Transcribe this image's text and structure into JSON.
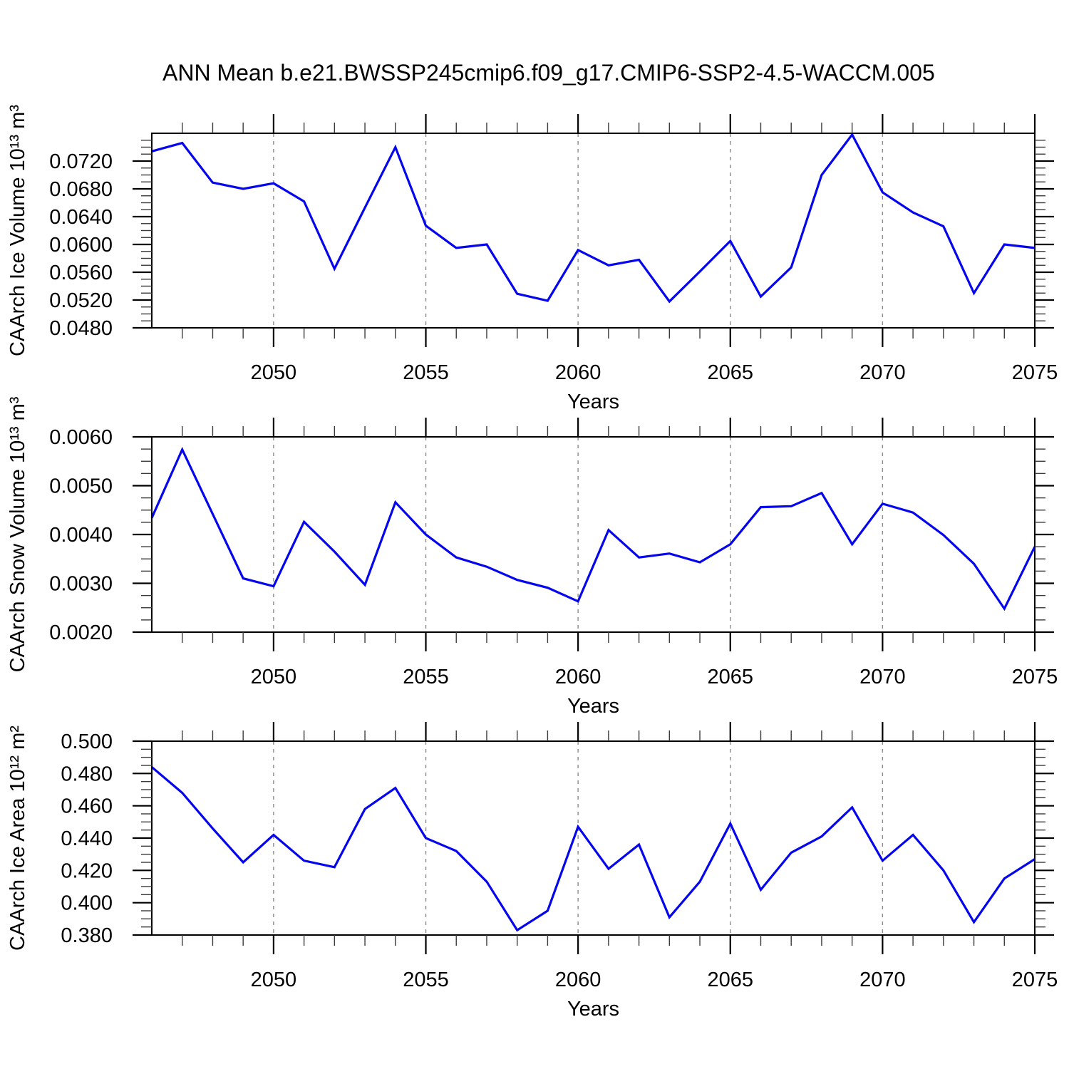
{
  "title": "ANN Mean b.e21.BWSSP245cmip6.f09_g17.CMIP6-SSP2-4.5-WACCM.005",
  "line_color": "#0505EE",
  "chart_data": [
    {
      "type": "line",
      "id": "caarch-ice-volume",
      "ylabel": "CAArch Ice Volume 10¹³ m³",
      "xlabel": "Years",
      "xlim": [
        2046,
        2075
      ],
      "ylim": [
        0.048,
        0.076
      ],
      "y_ticks": [
        0.048,
        0.052,
        0.056,
        0.06,
        0.064,
        0.068,
        0.072
      ],
      "y_minor_step": 0.001,
      "y_decimals": 4,
      "x_major_ticks": [
        2050,
        2055,
        2060,
        2065,
        2070,
        2075
      ],
      "x_gridlines": [
        2050,
        2055,
        2060,
        2065,
        2070
      ],
      "grid": "vertical-dashed",
      "legend": "none",
      "x": [
        2046,
        2047,
        2048,
        2049,
        2050,
        2051,
        2052,
        2053,
        2054,
        2055,
        2056,
        2057,
        2058,
        2059,
        2060,
        2061,
        2062,
        2063,
        2064,
        2065,
        2066,
        2067,
        2068,
        2069,
        2070,
        2071,
        2072,
        2073,
        2074,
        2075
      ],
      "values": [
        0.0734,
        0.0746,
        0.0689,
        0.068,
        0.0688,
        0.0662,
        0.0565,
        0.0653,
        0.074,
        0.0627,
        0.0595,
        0.06,
        0.0529,
        0.0519,
        0.0592,
        0.057,
        0.0578,
        0.0518,
        0.0561,
        0.0605,
        0.0525,
        0.0567,
        0.07,
        0.0758,
        0.0675,
        0.0646,
        0.0626,
        0.053,
        0.06,
        0.0595
      ]
    },
    {
      "type": "line",
      "id": "caarch-snow-volume",
      "ylabel": "CAArch Snow Volume 10¹³ m³",
      "xlabel": "Years",
      "xlim": [
        2046,
        2075
      ],
      "ylim": [
        0.002,
        0.006
      ],
      "y_ticks": [
        0.002,
        0.003,
        0.004,
        0.005,
        0.006
      ],
      "y_minor_step": 0.00025,
      "y_decimals": 4,
      "x_major_ticks": [
        2050,
        2055,
        2060,
        2065,
        2070,
        2075
      ],
      "x_gridlines": [
        2050,
        2055,
        2060,
        2065,
        2070
      ],
      "grid": "vertical-dashed",
      "legend": "none",
      "x": [
        2046,
        2047,
        2048,
        2049,
        2050,
        2051,
        2052,
        2053,
        2054,
        2055,
        2056,
        2057,
        2058,
        2059,
        2060,
        2061,
        2062,
        2063,
        2064,
        2065,
        2066,
        2067,
        2068,
        2069,
        2070,
        2071,
        2072,
        2073,
        2074,
        2075
      ],
      "values": [
        0.00434,
        0.00574,
        0.00442,
        0.0031,
        0.00294,
        0.00426,
        0.00365,
        0.00297,
        0.00466,
        0.004,
        0.00353,
        0.00334,
        0.00307,
        0.00291,
        0.00263,
        0.00409,
        0.00353,
        0.00361,
        0.00343,
        0.0038,
        0.00456,
        0.00458,
        0.00485,
        0.0038,
        0.00463,
        0.00445,
        0.00399,
        0.0034,
        0.00248,
        0.00375
      ]
    },
    {
      "type": "line",
      "id": "caarch-ice-area",
      "ylabel": "CAArch Ice Area 10¹² m²",
      "xlabel": "Years",
      "xlim": [
        2046,
        2075
      ],
      "ylim": [
        0.38,
        0.5
      ],
      "y_ticks": [
        0.38,
        0.4,
        0.42,
        0.44,
        0.46,
        0.48,
        0.5
      ],
      "y_minor_step": 0.005,
      "y_decimals": 3,
      "x_major_ticks": [
        2050,
        2055,
        2060,
        2065,
        2070,
        2075
      ],
      "x_gridlines": [
        2050,
        2055,
        2060,
        2065,
        2070
      ],
      "grid": "vertical-dashed",
      "legend": "none",
      "x": [
        2046,
        2047,
        2048,
        2049,
        2050,
        2051,
        2052,
        2053,
        2054,
        2055,
        2056,
        2057,
        2058,
        2059,
        2060,
        2061,
        2062,
        2063,
        2064,
        2065,
        2066,
        2067,
        2068,
        2069,
        2070,
        2071,
        2072,
        2073,
        2074,
        2075
      ],
      "values": [
        0.484,
        0.468,
        0.446,
        0.425,
        0.442,
        0.426,
        0.422,
        0.458,
        0.471,
        0.44,
        0.432,
        0.413,
        0.383,
        0.395,
        0.447,
        0.421,
        0.436,
        0.391,
        0.413,
        0.449,
        0.408,
        0.431,
        0.441,
        0.459,
        0.426,
        0.442,
        0.42,
        0.388,
        0.415,
        0.427
      ]
    }
  ]
}
